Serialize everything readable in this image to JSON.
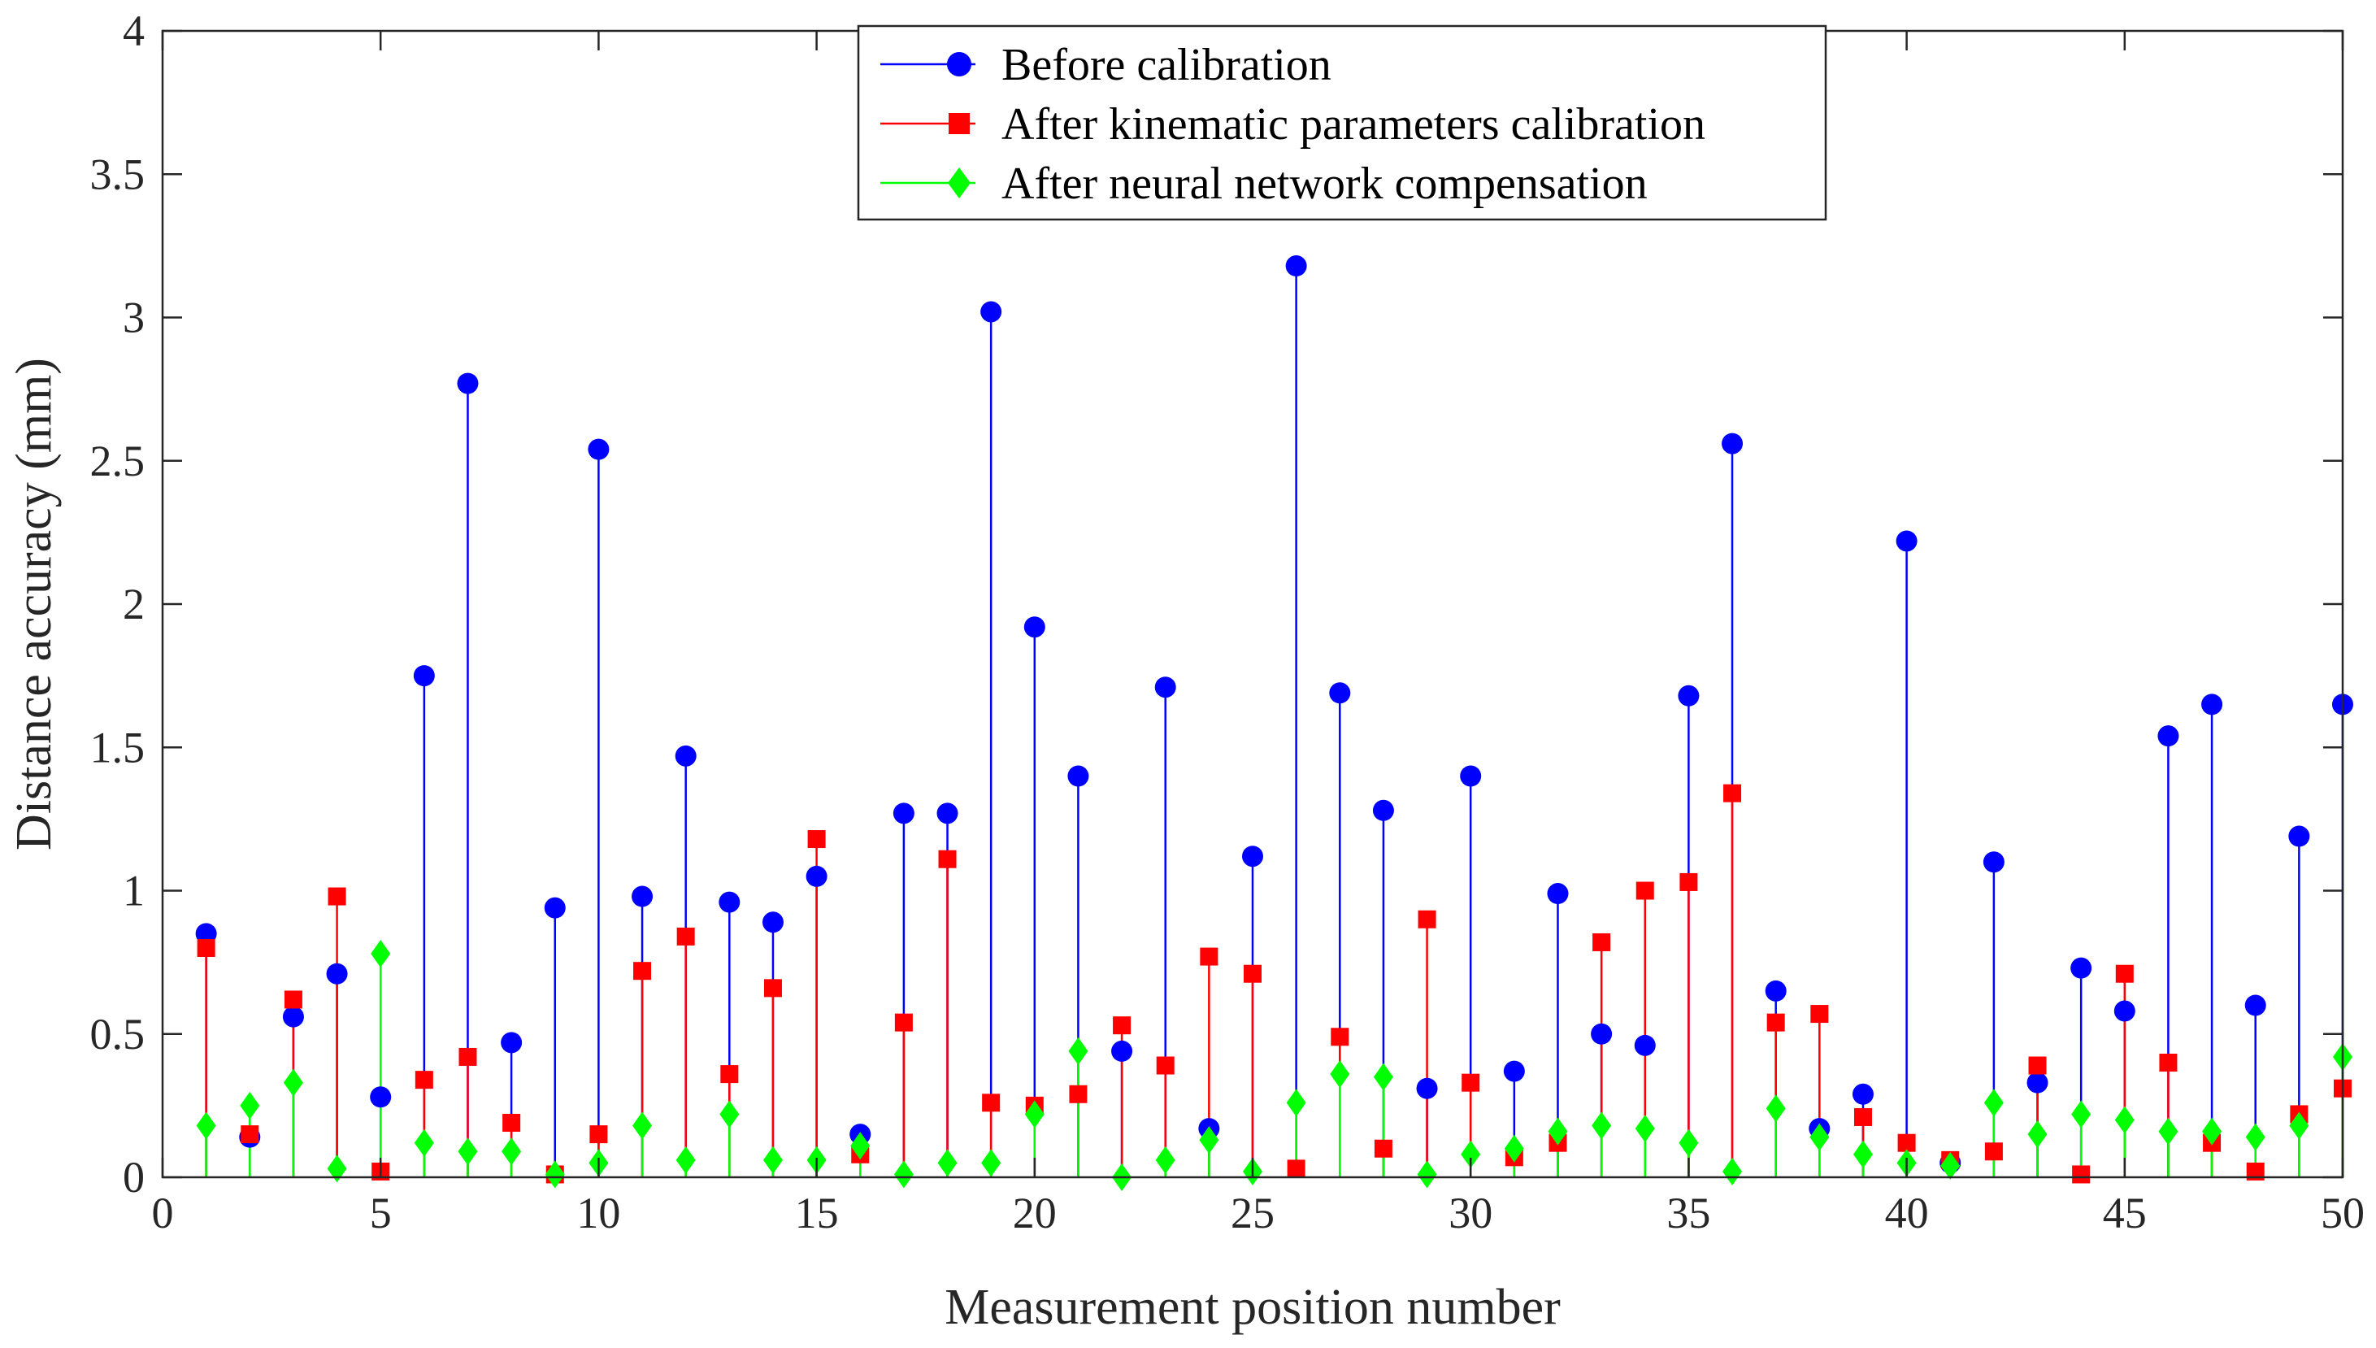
{
  "chart_data": {
    "type": "stem",
    "title": "",
    "xlabel": "Measurement position number",
    "ylabel": "Distance accuracy (mm)",
    "xlim": [
      0,
      50
    ],
    "ylim": [
      0,
      4
    ],
    "xticks": [
      0,
      5,
      10,
      15,
      20,
      25,
      30,
      35,
      40,
      45,
      50
    ],
    "yticks": [
      0,
      0.5,
      1,
      1.5,
      2,
      2.5,
      3,
      3.5,
      4
    ],
    "xtick_labels": [
      "0",
      "5",
      "10",
      "15",
      "20",
      "25",
      "30",
      "35",
      "40",
      "45",
      "50"
    ],
    "ytick_labels": [
      "0",
      "0.5",
      "1",
      "1.5",
      "2",
      "2.5",
      "3",
      "3.5",
      "4"
    ],
    "grid": false,
    "legend_position": "top-center",
    "x": [
      1,
      2,
      3,
      4,
      5,
      6,
      7,
      8,
      9,
      10,
      11,
      12,
      13,
      14,
      15,
      16,
      17,
      18,
      19,
      20,
      21,
      22,
      23,
      24,
      25,
      26,
      27,
      28,
      29,
      30,
      31,
      32,
      33,
      34,
      35,
      36,
      37,
      38,
      39,
      40,
      41,
      42,
      43,
      44,
      45,
      46,
      47,
      48,
      49,
      50
    ],
    "series": [
      {
        "name": "Before calibration",
        "color": "#0000ff",
        "marker": "circle",
        "values": [
          0.85,
          0.14,
          0.56,
          0.71,
          0.28,
          1.75,
          2.77,
          0.47,
          0.94,
          2.54,
          0.98,
          1.47,
          0.96,
          0.89,
          1.05,
          0.15,
          1.27,
          1.27,
          3.02,
          1.92,
          1.4,
          0.44,
          1.71,
          0.17,
          1.12,
          3.18,
          1.69,
          1.28,
          0.31,
          1.4,
          0.37,
          0.99,
          0.5,
          0.46,
          1.68,
          2.56,
          0.65,
          0.17,
          0.29,
          2.22,
          0.05,
          1.1,
          0.33,
          0.73,
          0.58,
          1.54,
          1.65,
          0.6,
          1.19,
          1.65
        ]
      },
      {
        "name": "After kinematic parameters calibration",
        "color": "#ff0000",
        "marker": "square",
        "values": [
          0.8,
          0.15,
          0.62,
          0.98,
          0.02,
          0.34,
          0.42,
          0.19,
          0.01,
          0.15,
          0.72,
          0.84,
          0.36,
          0.66,
          1.18,
          0.08,
          0.54,
          1.11,
          0.26,
          0.25,
          0.29,
          0.53,
          0.39,
          0.77,
          0.71,
          0.03,
          0.49,
          0.1,
          0.9,
          0.33,
          0.07,
          0.12,
          0.82,
          1.0,
          1.03,
          1.34,
          0.54,
          0.57,
          0.21,
          0.12,
          0.06,
          0.09,
          0.39,
          0.01,
          0.71,
          0.4,
          0.12,
          0.02,
          0.22,
          0.31
        ]
      },
      {
        "name": "After neural network compensation",
        "color": "#00ff00",
        "marker": "diamond",
        "values": [
          0.18,
          0.25,
          0.33,
          0.03,
          0.78,
          0.12,
          0.09,
          0.09,
          0.01,
          0.05,
          0.18,
          0.06,
          0.22,
          0.06,
          0.06,
          0.11,
          0.01,
          0.05,
          0.05,
          0.22,
          0.44,
          0.0,
          0.06,
          0.13,
          0.02,
          0.26,
          0.36,
          0.35,
          0.01,
          0.08,
          0.1,
          0.16,
          0.18,
          0.17,
          0.12,
          0.02,
          0.24,
          0.14,
          0.08,
          0.05,
          0.04,
          0.26,
          0.15,
          0.22,
          0.2,
          0.16,
          0.16,
          0.14,
          0.18,
          0.42
        ]
      }
    ]
  }
}
